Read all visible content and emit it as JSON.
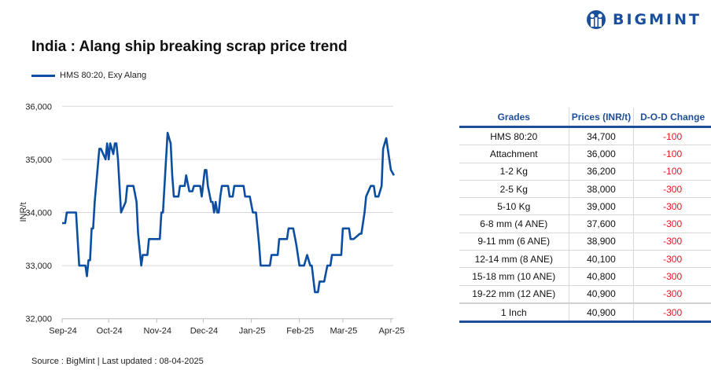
{
  "brand": {
    "name": "BIGMINT",
    "color": "#1a4f9c"
  },
  "title": "India : Alang ship breaking scrap price trend",
  "footer": "Source : BigMint | Last updated : 08-04-2025",
  "chart_data": {
    "type": "line",
    "title": "India : Alang ship breaking scrap price trend",
    "ylabel": "INR/t",
    "xlabel": "",
    "ylim": [
      32000,
      36000
    ],
    "yticks": [
      "32,000",
      "33,000",
      "34,000",
      "35,000",
      "36,000"
    ],
    "xticks": [
      {
        "label": "Sep-24",
        "date": "2024-09-01"
      },
      {
        "label": "Oct-24",
        "date": "2024-10-01"
      },
      {
        "label": "Nov-24",
        "date": "2024-11-01"
      },
      {
        "label": "Dec-24",
        "date": "2024-12-01"
      },
      {
        "label": "Jan-25",
        "date": "2025-01-01"
      },
      {
        "label": "Feb-25",
        "date": "2025-02-01"
      },
      {
        "label": "Mar-25",
        "date": "2025-03-01"
      },
      {
        "label": "Apr-25",
        "date": "2025-04-01"
      }
    ],
    "grid": true,
    "legend": "top-left",
    "series": [
      {
        "name": "HMS 80:20, Exy Alang",
        "color": "#0b4ea2",
        "points": [
          [
            "2024-09-01",
            33800
          ],
          [
            "2024-09-03",
            33800
          ],
          [
            "2024-09-04",
            34000
          ],
          [
            "2024-09-10",
            34000
          ],
          [
            "2024-09-12",
            33000
          ],
          [
            "2024-09-16",
            33000
          ],
          [
            "2024-09-17",
            32800
          ],
          [
            "2024-09-18",
            33100
          ],
          [
            "2024-09-19",
            33100
          ],
          [
            "2024-09-20",
            33700
          ],
          [
            "2024-09-21",
            33700
          ],
          [
            "2024-09-22",
            34200
          ],
          [
            "2024-09-25",
            35200
          ],
          [
            "2024-09-26",
            35200
          ],
          [
            "2024-09-29",
            35000
          ],
          [
            "2024-09-30",
            35300
          ],
          [
            "2024-10-01",
            35000
          ],
          [
            "2024-10-02",
            35300
          ],
          [
            "2024-10-04",
            35100
          ],
          [
            "2024-10-05",
            35300
          ],
          [
            "2024-10-06",
            35300
          ],
          [
            "2024-10-07",
            35000
          ],
          [
            "2024-10-09",
            34000
          ],
          [
            "2024-10-12",
            34200
          ],
          [
            "2024-10-13",
            34500
          ],
          [
            "2024-10-17",
            34500
          ],
          [
            "2024-10-19",
            34200
          ],
          [
            "2024-10-20",
            33600
          ],
          [
            "2024-10-21",
            33300
          ],
          [
            "2024-10-22",
            33000
          ],
          [
            "2024-10-23",
            33200
          ],
          [
            "2024-10-26",
            33200
          ],
          [
            "2024-10-27",
            33500
          ],
          [
            "2024-11-03",
            33500
          ],
          [
            "2024-11-04",
            34000
          ],
          [
            "2024-11-05",
            34000
          ],
          [
            "2024-11-07",
            35000
          ],
          [
            "2024-11-08",
            35500
          ],
          [
            "2024-11-10",
            35300
          ],
          [
            "2024-11-11",
            34700
          ],
          [
            "2024-11-12",
            34300
          ],
          [
            "2024-11-15",
            34300
          ],
          [
            "2024-11-16",
            34500
          ],
          [
            "2024-11-19",
            34500
          ],
          [
            "2024-11-20",
            34700
          ],
          [
            "2024-11-22",
            34400
          ],
          [
            "2024-11-24",
            34400
          ],
          [
            "2024-11-25",
            34500
          ],
          [
            "2024-11-29",
            34500
          ],
          [
            "2024-11-30",
            34300
          ],
          [
            "2024-12-02",
            34800
          ],
          [
            "2024-12-03",
            34800
          ],
          [
            "2024-12-04",
            34500
          ],
          [
            "2024-12-06",
            34200
          ],
          [
            "2024-12-07",
            34200
          ],
          [
            "2024-12-08",
            34000
          ],
          [
            "2024-12-09",
            34200
          ],
          [
            "2024-12-10",
            34000
          ],
          [
            "2024-12-11",
            34000
          ],
          [
            "2024-12-12",
            34300
          ],
          [
            "2024-12-13",
            34500
          ],
          [
            "2024-12-17",
            34500
          ],
          [
            "2024-12-18",
            34300
          ],
          [
            "2024-12-20",
            34300
          ],
          [
            "2024-12-21",
            34500
          ],
          [
            "2024-12-27",
            34500
          ],
          [
            "2024-12-28",
            34300
          ],
          [
            "2024-12-31",
            34300
          ],
          [
            "2025-01-02",
            34000
          ],
          [
            "2025-01-04",
            34000
          ],
          [
            "2025-01-06",
            33400
          ],
          [
            "2025-01-07",
            33000
          ],
          [
            "2025-01-13",
            33000
          ],
          [
            "2025-01-14",
            33200
          ],
          [
            "2025-01-18",
            33200
          ],
          [
            "2025-01-19",
            33500
          ],
          [
            "2025-01-24",
            33500
          ],
          [
            "2025-01-25",
            33700
          ],
          [
            "2025-01-28",
            33700
          ],
          [
            "2025-01-30",
            33400
          ],
          [
            "2025-02-01",
            33000
          ],
          [
            "2025-02-04",
            33000
          ],
          [
            "2025-02-06",
            33200
          ],
          [
            "2025-02-08",
            33000
          ],
          [
            "2025-02-09",
            33000
          ],
          [
            "2025-02-11",
            32500
          ],
          [
            "2025-02-13",
            32500
          ],
          [
            "2025-02-14",
            32700
          ],
          [
            "2025-02-17",
            32700
          ],
          [
            "2025-02-19",
            33000
          ],
          [
            "2025-02-21",
            33000
          ],
          [
            "2025-02-22",
            33200
          ],
          [
            "2025-02-28",
            33200
          ],
          [
            "2025-03-01",
            33700
          ],
          [
            "2025-03-05",
            33700
          ],
          [
            "2025-03-06",
            33500
          ],
          [
            "2025-03-08",
            33500
          ],
          [
            "2025-03-12",
            33600
          ],
          [
            "2025-03-13",
            33600
          ],
          [
            "2025-03-15",
            34000
          ],
          [
            "2025-03-16",
            34300
          ],
          [
            "2025-03-19",
            34500
          ],
          [
            "2025-03-21",
            34500
          ],
          [
            "2025-03-22",
            34300
          ],
          [
            "2025-03-24",
            34300
          ],
          [
            "2025-03-26",
            34500
          ],
          [
            "2025-03-27",
            35200
          ],
          [
            "2025-03-29",
            35400
          ],
          [
            "2025-03-31",
            35000
          ],
          [
            "2025-04-01",
            34800
          ],
          [
            "2025-04-03",
            34700
          ]
        ]
      }
    ]
  },
  "table": {
    "headers": [
      "Grades",
      "Prices (INR/t)",
      "D-O-D Change"
    ],
    "rows": [
      [
        "HMS 80:20",
        "34,700",
        "-100"
      ],
      [
        "Attachment",
        "36,000",
        "-100"
      ],
      [
        "1-2 Kg",
        "36,200",
        "-100"
      ],
      [
        "2-5 Kg",
        "38,000",
        "-300"
      ],
      [
        "5-10 Kg",
        "39,000",
        "-300"
      ],
      [
        "6-8 mm (4 ANE)",
        "37,600",
        "-300"
      ],
      [
        "9-11 mm (6 ANE)",
        "38,900",
        "-300"
      ],
      [
        "12-14 mm (8 ANE)",
        "40,100",
        "-300"
      ],
      [
        "15-18 mm (10 ANE)",
        "40,800",
        "-300"
      ],
      [
        "19-22 mm (12 ANE)",
        "40,900",
        "-300"
      ],
      [
        "1 Inch",
        "40,900",
        "-300"
      ]
    ],
    "negative_color": "#e8141b"
  }
}
